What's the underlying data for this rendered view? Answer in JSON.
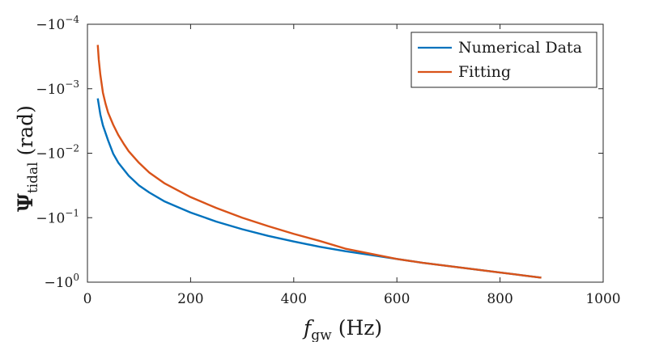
{
  "chart_data": {
    "type": "line",
    "title": "",
    "xlabel": {
      "main": "f",
      "sub": "gw",
      "rest": "(Hz)"
    },
    "ylabel": {
      "main": "Ψ",
      "sub": "tidal",
      "rest": "(rad)"
    },
    "xlim": [
      0,
      1000
    ],
    "ylim_log_magnitude": [
      0.0001,
      1
    ],
    "y_scale": "negative-log",
    "grid": false,
    "legend_position": "top-right",
    "x_ticks": [
      "0",
      "200",
      "400",
      "600",
      "800",
      "1000"
    ],
    "y_ticks": [
      {
        "base": "−10",
        "exp": "−4"
      },
      {
        "base": "−10",
        "exp": "−3"
      },
      {
        "base": "−10",
        "exp": "−2"
      },
      {
        "base": "−10",
        "exp": "−1"
      },
      {
        "base": "−10",
        "exp": "0"
      }
    ],
    "series": [
      {
        "name": "Numerical Data",
        "color": "#0072bd",
        "points": [
          [
            20,
            -0.00141
          ],
          [
            25,
            -0.00251
          ],
          [
            30,
            -0.0037
          ],
          [
            40,
            -0.00631
          ],
          [
            50,
            -0.0102
          ],
          [
            60,
            -0.0141
          ],
          [
            80,
            -0.0224
          ],
          [
            100,
            -0.0316
          ],
          [
            120,
            -0.0407
          ],
          [
            150,
            -0.0562
          ],
          [
            200,
            -0.0832
          ],
          [
            250,
            -0.115
          ],
          [
            300,
            -0.151
          ],
          [
            350,
            -0.191
          ],
          [
            400,
            -0.234
          ],
          [
            450,
            -0.282
          ],
          [
            500,
            -0.331
          ],
          [
            550,
            -0.38
          ],
          [
            600,
            -0.437
          ],
          [
            650,
            -0.501
          ],
          [
            700,
            -0.562
          ],
          [
            750,
            -0.631
          ],
          [
            800,
            -0.708
          ],
          [
            850,
            -0.794
          ],
          [
            880,
            -0.851
          ]
        ]
      },
      {
        "name": "Fitting",
        "color": "#d95319",
        "points": [
          [
            20,
            -0.000209
          ],
          [
            22,
            -0.000355
          ],
          [
            25,
            -0.000603
          ],
          [
            30,
            -0.00115
          ],
          [
            35,
            -0.0017
          ],
          [
            40,
            -0.00234
          ],
          [
            50,
            -0.00363
          ],
          [
            60,
            -0.00525
          ],
          [
            70,
            -0.00708
          ],
          [
            80,
            -0.00933
          ],
          [
            100,
            -0.0141
          ],
          [
            120,
            -0.02
          ],
          [
            150,
            -0.0295
          ],
          [
            200,
            -0.0479
          ],
          [
            250,
            -0.0708
          ],
          [
            300,
            -0.1
          ],
          [
            350,
            -0.135
          ],
          [
            400,
            -0.178
          ],
          [
            450,
            -0.229
          ],
          [
            500,
            -0.302
          ],
          [
            550,
            -0.363
          ],
          [
            600,
            -0.437
          ],
          [
            650,
            -0.501
          ],
          [
            700,
            -0.562
          ],
          [
            750,
            -0.631
          ],
          [
            800,
            -0.708
          ],
          [
            850,
            -0.794
          ],
          [
            880,
            -0.851
          ]
        ]
      }
    ]
  }
}
